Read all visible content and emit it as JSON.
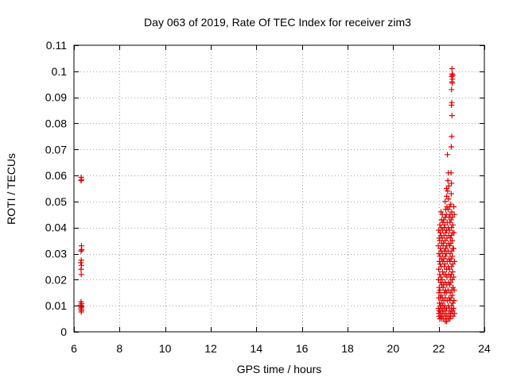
{
  "chart_data": {
    "type": "scatter",
    "title": "Day 063 of 2019, Rate Of TEC Index for receiver zim3",
    "xlabel": "GPS time / hours",
    "ylabel": "ROTI / TECUs",
    "xlim": [
      6,
      24
    ],
    "ylim": [
      0,
      0.11
    ],
    "x_ticks": [
      6,
      8,
      10,
      12,
      14,
      16,
      18,
      20,
      22,
      24
    ],
    "y_ticks": [
      0,
      0.01,
      0.02,
      0.03,
      0.04,
      0.05,
      0.06,
      0.07,
      0.08,
      0.09,
      0.1,
      0.11
    ],
    "x_tick_labels": [
      "6",
      "8",
      "10",
      "12",
      "14",
      "16",
      "18",
      "20",
      "22",
      "24"
    ],
    "y_tick_labels": [
      "0",
      "0.01",
      "0.02",
      "0.03",
      "0.04",
      "0.05",
      "0.06",
      "0.07",
      "0.08",
      "0.09",
      "0.1",
      "0.11"
    ],
    "grid": true,
    "marker": "+",
    "marker_color": "#e00000",
    "series": [
      {
        "points": [
          [
            6.32,
            0.0593
          ],
          [
            6.33,
            0.0585
          ],
          [
            6.31,
            0.058
          ],
          [
            6.33,
            0.033
          ],
          [
            6.31,
            0.031
          ],
          [
            6.34,
            0.0315
          ],
          [
            6.32,
            0.0275
          ],
          [
            6.3,
            0.0265
          ],
          [
            6.33,
            0.0255
          ],
          [
            6.31,
            0.024
          ],
          [
            6.32,
            0.022
          ],
          [
            6.31,
            0.0115
          ],
          [
            6.33,
            0.0108
          ],
          [
            6.3,
            0.0102
          ],
          [
            6.34,
            0.0098
          ],
          [
            6.32,
            0.0094
          ],
          [
            6.31,
            0.0088
          ],
          [
            6.33,
            0.0082
          ],
          [
            6.32,
            0.0076
          ],
          [
            22.0,
            0.039
          ],
          [
            22.02,
            0.036
          ],
          [
            21.98,
            0.033
          ],
          [
            22.01,
            0.03
          ],
          [
            22.03,
            0.027
          ],
          [
            22.0,
            0.024
          ],
          [
            21.99,
            0.02
          ],
          [
            22.02,
            0.017
          ],
          [
            22.01,
            0.015
          ],
          [
            22.0,
            0.013
          ],
          [
            22.03,
            0.011
          ],
          [
            21.99,
            0.009
          ],
          [
            22.02,
            0.008
          ],
          [
            22.0,
            0.007
          ],
          [
            22.01,
            0.006
          ],
          [
            22.05,
            0.041
          ],
          [
            22.06,
            0.038
          ],
          [
            22.04,
            0.035
          ],
          [
            22.07,
            0.032
          ],
          [
            22.05,
            0.029
          ],
          [
            22.06,
            0.026
          ],
          [
            22.04,
            0.022
          ],
          [
            22.08,
            0.019
          ],
          [
            22.05,
            0.016
          ],
          [
            22.07,
            0.013
          ],
          [
            22.06,
            0.01
          ],
          [
            22.04,
            0.008
          ],
          [
            22.08,
            0.006
          ],
          [
            22.05,
            0.005
          ],
          [
            22.1,
            0.046
          ],
          [
            22.12,
            0.043
          ],
          [
            22.11,
            0.04
          ],
          [
            22.09,
            0.037
          ],
          [
            22.13,
            0.034
          ],
          [
            22.1,
            0.031
          ],
          [
            22.12,
            0.028
          ],
          [
            22.11,
            0.025
          ],
          [
            22.09,
            0.021
          ],
          [
            22.13,
            0.018
          ],
          [
            22.1,
            0.014
          ],
          [
            22.12,
            0.011
          ],
          [
            22.11,
            0.009
          ],
          [
            22.09,
            0.007
          ],
          [
            22.13,
            0.005
          ],
          [
            22.16,
            0.045
          ],
          [
            22.18,
            0.042
          ],
          [
            22.17,
            0.039
          ],
          [
            22.15,
            0.036
          ],
          [
            22.19,
            0.033
          ],
          [
            22.16,
            0.03
          ],
          [
            22.18,
            0.027
          ],
          [
            22.17,
            0.023
          ],
          [
            22.15,
            0.02
          ],
          [
            22.19,
            0.017
          ],
          [
            22.16,
            0.013
          ],
          [
            22.18,
            0.01
          ],
          [
            22.17,
            0.008
          ],
          [
            22.15,
            0.006
          ],
          [
            22.22,
            0.043
          ],
          [
            22.24,
            0.04
          ],
          [
            22.23,
            0.037
          ],
          [
            22.21,
            0.034
          ],
          [
            22.25,
            0.031
          ],
          [
            22.22,
            0.028
          ],
          [
            22.24,
            0.025
          ],
          [
            22.23,
            0.022
          ],
          [
            22.21,
            0.018
          ],
          [
            22.25,
            0.015
          ],
          [
            22.22,
            0.012
          ],
          [
            22.24,
            0.009
          ],
          [
            22.23,
            0.007
          ],
          [
            22.21,
            0.005
          ],
          [
            22.28,
            0.05
          ],
          [
            22.3,
            0.047
          ],
          [
            22.29,
            0.044
          ],
          [
            22.27,
            0.041
          ],
          [
            22.31,
            0.038
          ],
          [
            22.28,
            0.035
          ],
          [
            22.3,
            0.032
          ],
          [
            22.29,
            0.029
          ],
          [
            22.27,
            0.026
          ],
          [
            22.31,
            0.022
          ],
          [
            22.28,
            0.019
          ],
          [
            22.3,
            0.016
          ],
          [
            22.29,
            0.013
          ],
          [
            22.27,
            0.01
          ],
          [
            22.31,
            0.008
          ],
          [
            22.3,
            0.006
          ],
          [
            22.29,
            0.004
          ],
          [
            22.34,
            0.055
          ],
          [
            22.35,
            0.052
          ],
          [
            22.36,
            0.048
          ],
          [
            22.33,
            0.045
          ],
          [
            22.37,
            0.042
          ],
          [
            22.34,
            0.039
          ],
          [
            22.36,
            0.036
          ],
          [
            22.35,
            0.033
          ],
          [
            22.33,
            0.03
          ],
          [
            22.37,
            0.027
          ],
          [
            22.34,
            0.024
          ],
          [
            22.36,
            0.021
          ],
          [
            22.35,
            0.018
          ],
          [
            22.33,
            0.015
          ],
          [
            22.37,
            0.012
          ],
          [
            22.34,
            0.009
          ],
          [
            22.36,
            0.006
          ],
          [
            22.35,
            0.004
          ],
          [
            22.38,
            0.068
          ],
          [
            22.4,
            0.058
          ],
          [
            22.39,
            0.054
          ],
          [
            22.42,
            0.061
          ],
          [
            22.44,
            0.056
          ],
          [
            22.43,
            0.051
          ],
          [
            22.41,
            0.047
          ],
          [
            22.45,
            0.044
          ],
          [
            22.42,
            0.04
          ],
          [
            22.44,
            0.037
          ],
          [
            22.43,
            0.034
          ],
          [
            22.41,
            0.031
          ],
          [
            22.45,
            0.028
          ],
          [
            22.42,
            0.025
          ],
          [
            22.44,
            0.022
          ],
          [
            22.43,
            0.019
          ],
          [
            22.41,
            0.016
          ],
          [
            22.45,
            0.013
          ],
          [
            22.42,
            0.01
          ],
          [
            22.44,
            0.007
          ],
          [
            22.43,
            0.005
          ],
          [
            22.48,
            0.048
          ],
          [
            22.5,
            0.045
          ],
          [
            22.49,
            0.042
          ],
          [
            22.47,
            0.039
          ],
          [
            22.51,
            0.036
          ],
          [
            22.48,
            0.033
          ],
          [
            22.5,
            0.03
          ],
          [
            22.49,
            0.027
          ],
          [
            22.47,
            0.024
          ],
          [
            22.51,
            0.021
          ],
          [
            22.48,
            0.018
          ],
          [
            22.5,
            0.015
          ],
          [
            22.49,
            0.012
          ],
          [
            22.47,
            0.009
          ],
          [
            22.51,
            0.007
          ],
          [
            22.49,
            0.005
          ],
          [
            22.54,
            0.061
          ],
          [
            22.56,
            0.057
          ],
          [
            22.55,
            0.053
          ],
          [
            22.53,
            0.049
          ],
          [
            22.57,
            0.046
          ],
          [
            22.54,
            0.043
          ],
          [
            22.56,
            0.04
          ],
          [
            22.55,
            0.037
          ],
          [
            22.53,
            0.034
          ],
          [
            22.57,
            0.031
          ],
          [
            22.54,
            0.028
          ],
          [
            22.56,
            0.025
          ],
          [
            22.55,
            0.022
          ],
          [
            22.53,
            0.019
          ],
          [
            22.57,
            0.016
          ],
          [
            22.54,
            0.013
          ],
          [
            22.56,
            0.01
          ],
          [
            22.55,
            0.008
          ],
          [
            22.53,
            0.006
          ],
          [
            22.55,
            0.071
          ],
          [
            22.57,
            0.075
          ],
          [
            22.58,
            0.083
          ],
          [
            22.56,
            0.087
          ],
          [
            22.57,
            0.088
          ],
          [
            22.56,
            0.093
          ],
          [
            22.58,
            0.096
          ],
          [
            22.57,
            0.098
          ],
          [
            22.59,
            0.099
          ],
          [
            22.58,
            0.101
          ],
          [
            22.6,
            0.097
          ],
          [
            22.59,
            0.0955
          ],
          [
            22.61,
            0.0985
          ],
          [
            22.6,
            0.044
          ],
          [
            22.62,
            0.041
          ],
          [
            22.61,
            0.038
          ],
          [
            22.59,
            0.035
          ],
          [
            22.63,
            0.032
          ],
          [
            22.6,
            0.029
          ],
          [
            22.62,
            0.026
          ],
          [
            22.61,
            0.023
          ],
          [
            22.59,
            0.02
          ],
          [
            22.63,
            0.017
          ],
          [
            22.6,
            0.014
          ],
          [
            22.62,
            0.011
          ],
          [
            22.61,
            0.008
          ],
          [
            22.63,
            0.006
          ],
          [
            22.66,
            0.048
          ],
          [
            22.68,
            0.045
          ],
          [
            22.67,
            0.038
          ],
          [
            22.65,
            0.032
          ],
          [
            22.69,
            0.027
          ],
          [
            22.66,
            0.021
          ],
          [
            22.68,
            0.016
          ],
          [
            22.67,
            0.012
          ],
          [
            22.65,
            0.009
          ],
          [
            22.69,
            0.007
          ]
        ]
      }
    ]
  }
}
